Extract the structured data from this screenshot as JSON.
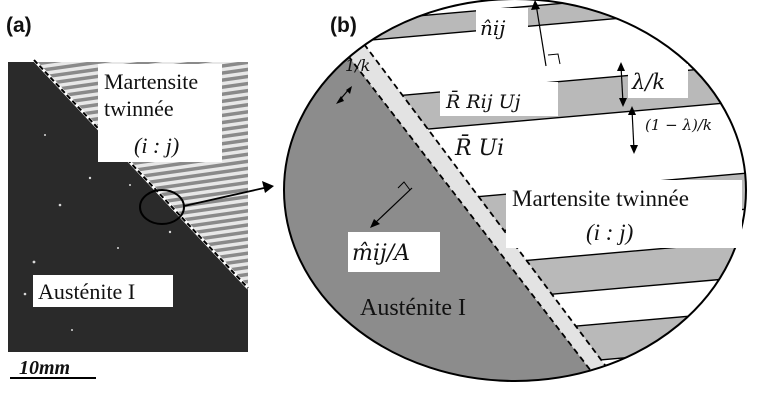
{
  "panel_a": {
    "label": "(a)",
    "region_martensite": {
      "line1": "Martensite",
      "line2": "twinnée",
      "line3": "(i : j)"
    },
    "region_austenite": "Austénite I",
    "scale_bar": "10mm"
  },
  "panel_b": {
    "label": "(b)",
    "normal_n": "n̂ij",
    "spacing_1k": "1/k",
    "lambda_k": "λ/k",
    "one_minus_lambda_k": "(1 − λ)/k",
    "variant_j": "R̄ Rij Uj",
    "variant_i": "R̄ Ui",
    "region_martensite": {
      "line1": "Martensite twinnée",
      "line2": "(i : j)"
    },
    "normal_m": "m̂ij/A",
    "region_austenite": "Austénite I"
  }
}
